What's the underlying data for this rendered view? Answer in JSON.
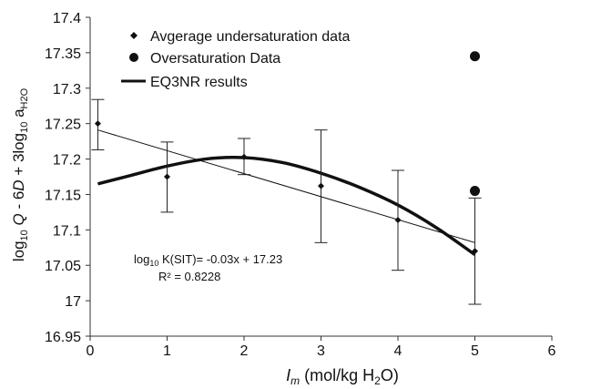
{
  "chart_data": {
    "type": "scatter",
    "title": "",
    "xlabel": {
      "main": "I",
      "sub": "m",
      "rest": " (mol/kg H",
      "sub2": "2",
      "end": "O)"
    },
    "ylabel": {
      "p1": "log",
      "p1sub": "10",
      "p2": " Q",
      "p3": " - 6",
      "p4": "D",
      "p5": " + 3log",
      "p5sub": "10",
      "p6": " a",
      "p6sub": "H2O"
    },
    "xlim": [
      0,
      6
    ],
    "ylim": [
      16.95,
      17.4
    ],
    "xticks": [
      "0",
      "1",
      "2",
      "3",
      "4",
      "5",
      "6"
    ],
    "yticks": [
      "16.95",
      "17",
      "17.05",
      "17.1",
      "17.15",
      "17.2",
      "17.25",
      "17.3",
      "17.35",
      "17.4"
    ],
    "legend_position": "top-left",
    "series": [
      {
        "name": "Avgerage undersaturation  data",
        "marker": "diamond",
        "points": [
          {
            "x": 0.1,
            "y": 17.25,
            "err_lo": 17.213,
            "err_hi": 17.284
          },
          {
            "x": 1.0,
            "y": 17.175,
            "err_lo": 17.125,
            "err_hi": 17.224
          },
          {
            "x": 2.0,
            "y": 17.203,
            "err_lo": 17.178,
            "err_hi": 17.229
          },
          {
            "x": 3.0,
            "y": 17.162,
            "err_lo": 17.082,
            "err_hi": 17.241
          },
          {
            "x": 4.0,
            "y": 17.114,
            "err_lo": 17.043,
            "err_hi": 17.184
          },
          {
            "x": 5.0,
            "y": 17.07,
            "err_lo": 16.995,
            "err_hi": 17.145
          }
        ]
      },
      {
        "name": "Oversaturation Data",
        "marker": "circle",
        "points": [
          {
            "x": 5.0,
            "y": 17.345
          },
          {
            "x": 5.0,
            "y": 17.155
          }
        ]
      },
      {
        "name": "EQ3NR results",
        "type": "line",
        "x": [
          0.1,
          0.5,
          1.0,
          1.5,
          2.0,
          2.5,
          3.0,
          3.5,
          4.0,
          4.5,
          5.0
        ],
        "y": [
          17.165,
          17.176,
          17.19,
          17.2,
          17.202,
          17.195,
          17.18,
          17.16,
          17.135,
          17.103,
          17.065
        ]
      }
    ],
    "trendline": {
      "x": [
        0.1,
        5.0
      ],
      "y": [
        17.241,
        17.082
      ]
    },
    "annotation": {
      "eq_prefix": "log",
      "eq_sub": "10",
      "eq_text": " K(SIT)= -0.03x + 17.23",
      "r2": "R² = 0.8228"
    }
  }
}
